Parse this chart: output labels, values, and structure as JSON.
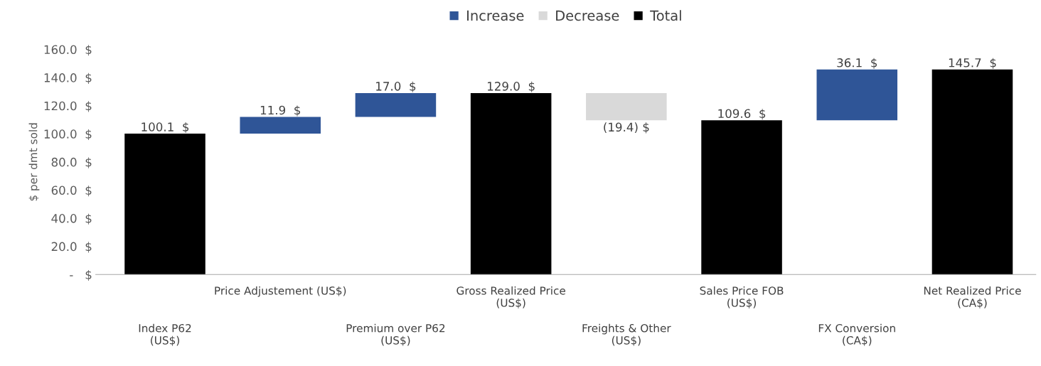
{
  "chart_data": {
    "type": "bar",
    "ylabel": "$ per dmt sold",
    "categories": [
      "Index P62\n(US$)",
      "Price Adjustement (US$)",
      "Premium over P62\n(US$)",
      "Gross Realized Price\n(US$)",
      "Freights & Other\n(US$)",
      "Sales Price FOB\n(US$)",
      "FX Conversion\n(CA$)",
      "Net Realized Price\n(CA$)"
    ],
    "series": [
      {
        "name": "Increase",
        "color": "#2f5597",
        "base": [
          null,
          100.1,
          112.0,
          null,
          null,
          null,
          109.6,
          null
        ],
        "values": [
          null,
          11.9,
          17.0,
          null,
          null,
          null,
          36.1,
          null
        ],
        "value_labels": [
          null,
          "11.9  $",
          "17.0  $",
          null,
          null,
          null,
          "36.1  $",
          null
        ]
      },
      {
        "name": "Decrease",
        "color": "#d9d9d9",
        "base": [
          null,
          null,
          null,
          null,
          129.0,
          null,
          null,
          null
        ],
        "values": [
          null,
          null,
          null,
          null,
          -19.4,
          null,
          null,
          null
        ],
        "value_labels": [
          null,
          null,
          null,
          null,
          "(19.4) $",
          null,
          null,
          null
        ]
      },
      {
        "name": "Total",
        "color": "#000000",
        "base": [
          0,
          null,
          null,
          0,
          null,
          0,
          null,
          0
        ],
        "values": [
          100.1,
          null,
          null,
          129.0,
          null,
          109.6,
          null,
          145.7
        ],
        "value_labels": [
          "100.1  $",
          null,
          null,
          "129.0  $",
          null,
          "109.6  $",
          null,
          "145.7  $"
        ]
      }
    ],
    "ylim": [
      0,
      160
    ],
    "yticks": [
      {
        "value": 0,
        "label": " -   $"
      },
      {
        "value": 20,
        "label": "20.0  $"
      },
      {
        "value": 40,
        "label": "40.0  $"
      },
      {
        "value": 60,
        "label": "60.0  $"
      },
      {
        "value": 80,
        "label": "80.0  $"
      },
      {
        "value": 100,
        "label": "100.0  $"
      },
      {
        "value": 120,
        "label": "120.0  $"
      },
      {
        "value": 140,
        "label": "140.0  $"
      },
      {
        "value": 160,
        "label": "160.0  $"
      }
    ],
    "grid": false,
    "legend": "top"
  }
}
